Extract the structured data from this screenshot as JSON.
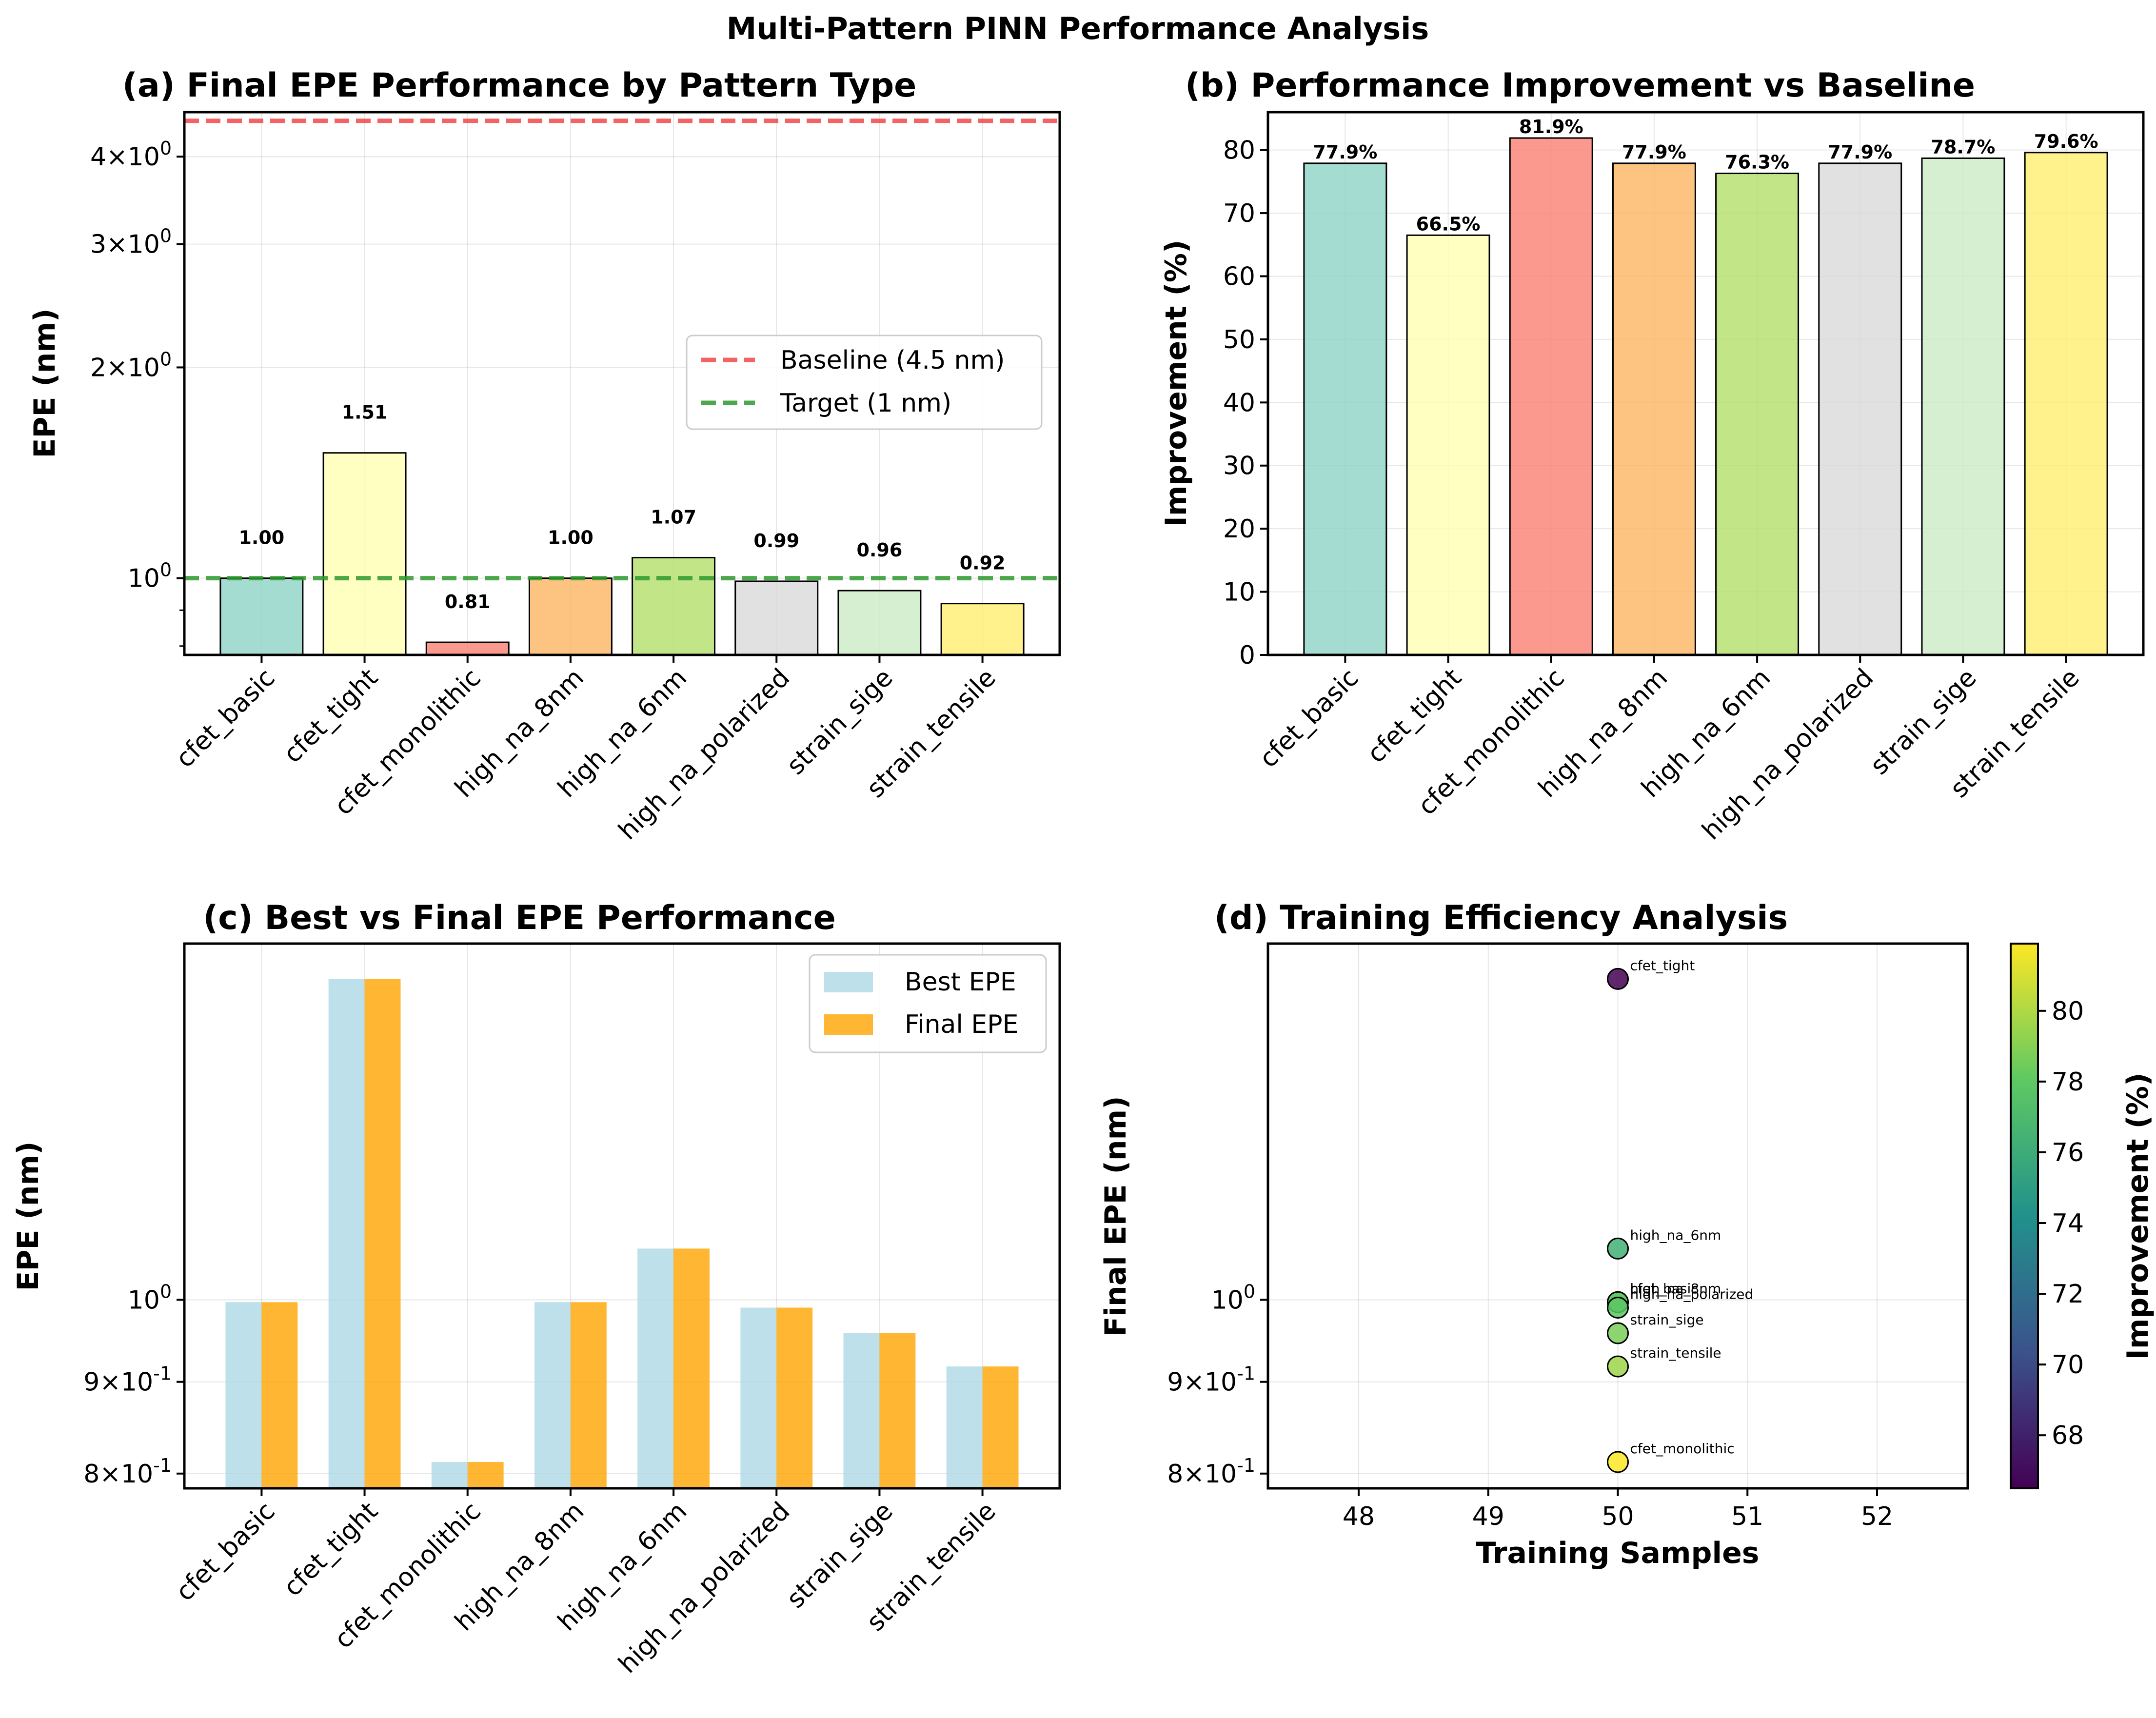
{
  "suptitle": "Multi-Pattern PINN Performance Analysis",
  "colors": {
    "bars": [
      "#8dd3c7",
      "#ffffb3",
      "#fb8072",
      "#fdb462",
      "#b3de69",
      "#d9d9d9",
      "#ccebc5",
      "#ffed6f"
    ],
    "baseline": "#f03030",
    "target": "#2e9a2e",
    "best": "#add8e6",
    "final": "#ffa500"
  },
  "chart_data": [
    {
      "id": "a",
      "type": "bar",
      "title": "(a) Final EPE Performance by Pattern Type",
      "xlabel": "",
      "ylabel": "EPE (nm)",
      "yscale": "log",
      "ylim": [
        0.777,
        4.63
      ],
      "yticks": [
        {
          "value": 1,
          "label": "10^0"
        },
        {
          "value": 2,
          "label": "2×10^0"
        },
        {
          "value": 3,
          "label": "3×10^0"
        },
        {
          "value": 4,
          "label": "4×10^0"
        }
      ],
      "categories": [
        "cfet_basic",
        "cfet_tight",
        "cfet_monolithic",
        "high_na_8nm",
        "high_na_6nm",
        "high_na_polarized",
        "strain_sige",
        "strain_tensile"
      ],
      "values": [
        1.0,
        1.51,
        0.81,
        1.0,
        1.07,
        0.99,
        0.96,
        0.92
      ],
      "value_labels": [
        "1.00",
        "1.51",
        "0.81",
        "1.00",
        "1.07",
        "0.99",
        "0.96",
        "0.92"
      ],
      "hlines": [
        {
          "name": "Baseline (4.5 nm)",
          "value": 4.5,
          "style": "dashed",
          "color": "baseline"
        },
        {
          "name": "Target (1 nm)",
          "value": 1.0,
          "style": "dashed",
          "color": "target"
        }
      ],
      "legend": [
        "Baseline (4.5 nm)",
        "Target (1 nm)"
      ],
      "legend_position": "center-right",
      "grid": true
    },
    {
      "id": "b",
      "type": "bar",
      "title": "(b) Performance Improvement vs Baseline",
      "xlabel": "",
      "ylabel": "Improvement (%)",
      "ylim": [
        0,
        86
      ],
      "yticks": [
        0,
        10,
        20,
        30,
        40,
        50,
        60,
        70,
        80
      ],
      "categories": [
        "cfet_basic",
        "cfet_tight",
        "cfet_monolithic",
        "high_na_8nm",
        "high_na_6nm",
        "high_na_polarized",
        "strain_sige",
        "strain_tensile"
      ],
      "values": [
        77.9,
        66.5,
        81.9,
        77.9,
        76.3,
        77.9,
        78.7,
        79.6
      ],
      "value_labels": [
        "77.9%",
        "66.5%",
        "81.9%",
        "77.9%",
        "76.3%",
        "77.9%",
        "78.7%",
        "79.6%"
      ],
      "grid": true
    },
    {
      "id": "c",
      "type": "bar",
      "title": "(c) Best vs Final EPE Performance",
      "xlabel": "",
      "ylabel": "EPE (nm)",
      "yscale": "log",
      "ylim": [
        0.785,
        1.58
      ],
      "yticks": [
        {
          "value": 0.8,
          "label": "8×10^-1"
        },
        {
          "value": 0.9,
          "label": "9×10^-1"
        },
        {
          "value": 1,
          "label": "10^0"
        }
      ],
      "categories": [
        "cfet_basic",
        "cfet_tight",
        "cfet_monolithic",
        "high_na_8nm",
        "high_na_6nm",
        "high_na_polarized",
        "strain_sige",
        "strain_tensile"
      ],
      "series": [
        {
          "name": "Best EPE",
          "color": "best",
          "values": [
            0.997,
            1.51,
            0.812,
            0.997,
            1.068,
            0.99,
            0.958,
            0.918
          ]
        },
        {
          "name": "Final EPE",
          "color": "final",
          "values": [
            0.997,
            1.51,
            0.812,
            0.997,
            1.068,
            0.99,
            0.958,
            0.918
          ]
        }
      ],
      "legend": [
        "Best EPE",
        "Final EPE"
      ],
      "legend_position": "top-right",
      "grid": true
    },
    {
      "id": "d",
      "type": "scatter",
      "title": "(d) Training Efficiency Analysis",
      "xlabel": "Training Samples",
      "ylabel": "Final EPE (nm)",
      "yscale": "log",
      "xlim": [
        47.3,
        52.7
      ],
      "ylim": [
        0.785,
        1.58
      ],
      "xticks": [
        48,
        49,
        50,
        51,
        52
      ],
      "yticks": [
        {
          "value": 0.8,
          "label": "8×10^-1"
        },
        {
          "value": 0.9,
          "label": "9×10^-1"
        },
        {
          "value": 1,
          "label": "10^0"
        }
      ],
      "points": [
        {
          "label": "cfet_basic",
          "x": 50,
          "y": 0.997,
          "improvement": 77.9
        },
        {
          "label": "cfet_tight",
          "x": 50,
          "y": 1.51,
          "improvement": 66.5
        },
        {
          "label": "cfet_monolithic",
          "x": 50,
          "y": 0.812,
          "improvement": 81.9
        },
        {
          "label": "high_na_8nm",
          "x": 50,
          "y": 0.997,
          "improvement": 77.9
        },
        {
          "label": "high_na_6nm",
          "x": 50,
          "y": 1.068,
          "improvement": 76.3
        },
        {
          "label": "high_na_polarized",
          "x": 50,
          "y": 0.99,
          "improvement": 77.9
        },
        {
          "label": "strain_sige",
          "x": 50,
          "y": 0.958,
          "improvement": 78.7
        },
        {
          "label": "strain_tensile",
          "x": 50,
          "y": 0.918,
          "improvement": 79.6
        }
      ],
      "colorbar": {
        "label": "Improvement (%)",
        "colormap": "viridis",
        "range": [
          66.5,
          81.9
        ],
        "ticks": [
          68,
          70,
          72,
          74,
          76,
          78,
          80
        ]
      },
      "grid": true
    }
  ]
}
